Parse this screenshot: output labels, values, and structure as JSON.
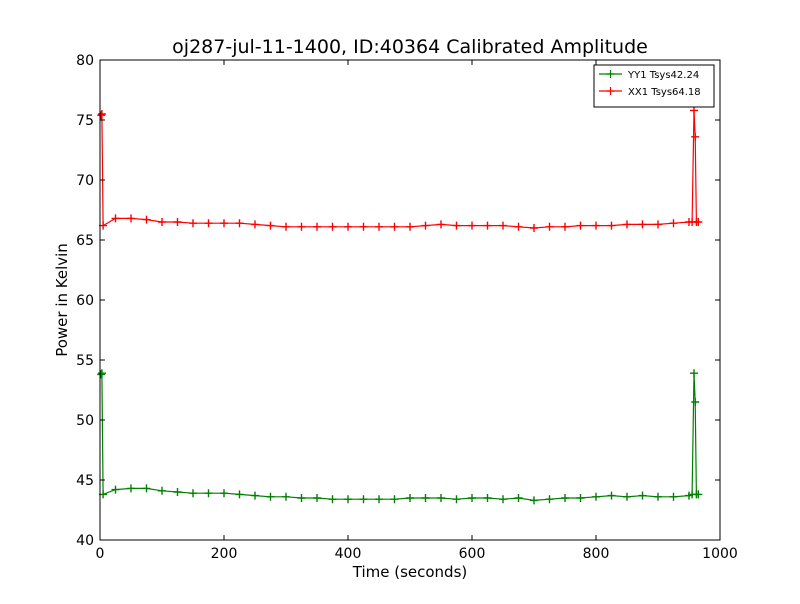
{
  "chart_data": {
    "type": "line",
    "title": "oj287-jul-11-1400, ID:40364 Calibrated Amplitude",
    "xlabel": "Time (seconds)",
    "ylabel": "Power in Kelvin",
    "xlim": [
      0,
      1000
    ],
    "ylim": [
      40,
      80
    ],
    "xticks": [
      0,
      200,
      400,
      600,
      800,
      1000
    ],
    "yticks": [
      40,
      45,
      50,
      55,
      60,
      65,
      70,
      75,
      80
    ],
    "grid": false,
    "legend_position": "top-right",
    "series": [
      {
        "name": "YY1 Tsys42.24",
        "color": "#008000",
        "marker": "+",
        "x": [
          2,
          3,
          5,
          25,
          50,
          75,
          100,
          125,
          150,
          175,
          200,
          225,
          250,
          275,
          300,
          325,
          350,
          375,
          400,
          425,
          450,
          475,
          500,
          525,
          550,
          575,
          600,
          625,
          650,
          675,
          700,
          725,
          750,
          775,
          800,
          825,
          850,
          875,
          900,
          925,
          950,
          955,
          958,
          960,
          962,
          965
        ],
        "y": [
          53.8,
          53.9,
          43.8,
          44.2,
          44.3,
          44.3,
          44.1,
          44.0,
          43.9,
          43.9,
          43.9,
          43.8,
          43.7,
          43.6,
          43.6,
          43.5,
          43.5,
          43.4,
          43.4,
          43.4,
          43.4,
          43.4,
          43.5,
          43.5,
          43.5,
          43.4,
          43.5,
          43.5,
          43.4,
          43.5,
          43.3,
          43.4,
          43.5,
          43.5,
          43.6,
          43.7,
          43.6,
          43.7,
          43.6,
          43.6,
          43.7,
          43.8,
          53.9,
          51.5,
          43.8,
          43.8
        ]
      },
      {
        "name": "XX1 Tsys64.18",
        "color": "#ff0000",
        "marker": "+",
        "x": [
          2,
          3,
          5,
          25,
          50,
          75,
          100,
          125,
          150,
          175,
          200,
          225,
          250,
          275,
          300,
          325,
          350,
          375,
          400,
          425,
          450,
          475,
          500,
          525,
          550,
          575,
          600,
          625,
          650,
          675,
          700,
          725,
          750,
          775,
          800,
          825,
          850,
          875,
          900,
          925,
          950,
          955,
          958,
          960,
          962,
          965
        ],
        "y": [
          75.4,
          75.5,
          66.2,
          66.8,
          66.8,
          66.7,
          66.5,
          66.5,
          66.4,
          66.4,
          66.4,
          66.4,
          66.3,
          66.2,
          66.1,
          66.1,
          66.1,
          66.1,
          66.1,
          66.1,
          66.1,
          66.1,
          66.1,
          66.2,
          66.3,
          66.2,
          66.2,
          66.2,
          66.2,
          66.1,
          66.0,
          66.1,
          66.1,
          66.2,
          66.2,
          66.2,
          66.3,
          66.3,
          66.3,
          66.4,
          66.5,
          66.5,
          75.8,
          73.6,
          66.5,
          66.5
        ]
      }
    ]
  }
}
